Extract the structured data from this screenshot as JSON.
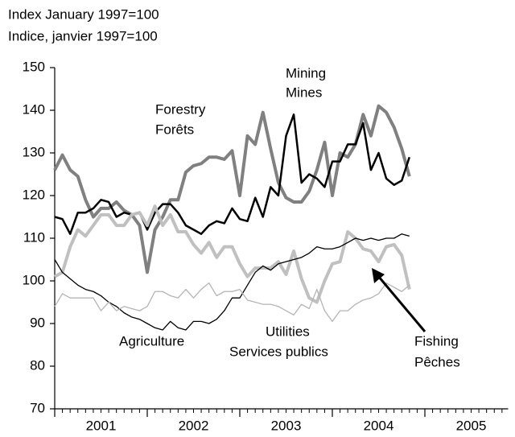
{
  "chart_data": {
    "type": "line",
    "title": "Index January 1997=100",
    "subtitle": "Indice, janvier 1997=100",
    "annotations": [
      "Mining",
      "Mines",
      "Forestry",
      "Forêts",
      "Agriculture",
      "Utilities",
      "Services publics",
      "Fishing",
      "Pêches"
    ],
    "x": [
      2001,
      2001.083,
      2001.167,
      2001.25,
      2001.333,
      2001.417,
      2001.5,
      2001.583,
      2001.667,
      2001.75,
      2001.833,
      2001.917,
      2002,
      2002.083,
      2002.167,
      2002.25,
      2002.333,
      2002.417,
      2002.5,
      2002.583,
      2002.667,
      2002.75,
      2002.833,
      2002.917,
      2003,
      2003.083,
      2003.167,
      2003.25,
      2003.333,
      2003.417,
      2003.5,
      2003.583,
      2003.667,
      2003.75,
      2003.833,
      2003.917,
      2004,
      2004.083,
      2004.167,
      2004.25,
      2004.333,
      2004.417,
      2004.5,
      2004.583,
      2004.667,
      2004.75,
      2004.833
    ],
    "series": [
      {
        "name": "Forestry",
        "color": "#808080",
        "width": 4,
        "values": [
          126,
          129.5,
          126,
          124.5,
          119,
          115,
          117,
          117,
          118.5,
          116.5,
          115.5,
          113,
          102,
          112,
          115,
          119,
          119,
          125.5,
          127,
          127.5,
          129,
          129,
          128.5,
          130.5,
          120,
          134,
          132,
          139.5,
          131,
          123,
          119.5,
          118.5,
          118.5,
          121,
          126,
          132.5,
          120,
          130,
          129,
          132,
          139,
          134,
          141,
          139.5,
          136,
          131,
          124.5
        ]
      },
      {
        "name": "Mining",
        "color": "#000000",
        "width": 2.5,
        "values": [
          115,
          114.5,
          111,
          116,
          116,
          117,
          119,
          118.5,
          115,
          116,
          115.5,
          116,
          112,
          116,
          118,
          118,
          116,
          113,
          112,
          111,
          113,
          114,
          113.5,
          117,
          114.5,
          114,
          119.5,
          115,
          122,
          120,
          134,
          139,
          123,
          125,
          124,
          122,
          128,
          128,
          132,
          132,
          137,
          126,
          130,
          124,
          122.5,
          123.5,
          129
        ]
      },
      {
        "name": "Fishing",
        "color": "#c0c0c0",
        "width": 4,
        "values": [
          101,
          102,
          108,
          112,
          110.5,
          113,
          115.5,
          115.5,
          113,
          113,
          115.5,
          116,
          113,
          117.5,
          113,
          115.5,
          111.5,
          111.5,
          108.5,
          106.5,
          109,
          105.5,
          108,
          108,
          104,
          101,
          103,
          103,
          103,
          104.5,
          101.5,
          107,
          100.5,
          96,
          95,
          100,
          104,
          104.5,
          111.5,
          110,
          107.5,
          107,
          104.5,
          108,
          108.5,
          106,
          98
        ]
      },
      {
        "name": "Agriculture",
        "color": "#000000",
        "width": 1.3,
        "values": [
          105,
          102,
          100.5,
          99,
          98,
          97.5,
          96.5,
          95,
          94,
          92.5,
          91.5,
          91,
          90,
          89,
          88.5,
          90.5,
          89,
          88.5,
          90.5,
          90.5,
          90,
          91,
          93,
          96,
          96,
          99,
          102,
          103.5,
          102.5,
          104,
          104.5,
          105,
          105.5,
          106.5,
          108,
          107.5,
          107.5,
          108,
          109,
          110,
          109.5,
          110,
          109.5,
          110,
          110,
          111,
          110.5
        ]
      },
      {
        "name": "Utilities",
        "color": "#b4b4b4",
        "width": 1.3,
        "values": [
          94,
          97,
          96,
          96,
          96,
          96,
          93,
          95,
          93,
          94,
          93.5,
          93,
          94,
          97.5,
          97.5,
          96.5,
          96,
          98,
          96,
          98,
          99.5,
          96.5,
          97.5,
          97.5,
          98,
          95.5,
          95,
          94.5,
          94.5,
          94,
          93,
          92,
          94.5,
          93.5,
          98,
          93,
          90.5,
          93,
          93,
          94.5,
          95.5,
          96,
          97,
          99.5,
          98.5,
          97.5,
          99
        ]
      }
    ],
    "xlim": [
      2001,
      2005.9
    ],
    "xticks": [
      2001,
      2002,
      2003,
      2004,
      2005
    ],
    "ylim": [
      70,
      150
    ],
    "yticks": [
      70,
      80,
      90,
      100,
      110,
      120,
      130,
      140,
      150
    ]
  }
}
